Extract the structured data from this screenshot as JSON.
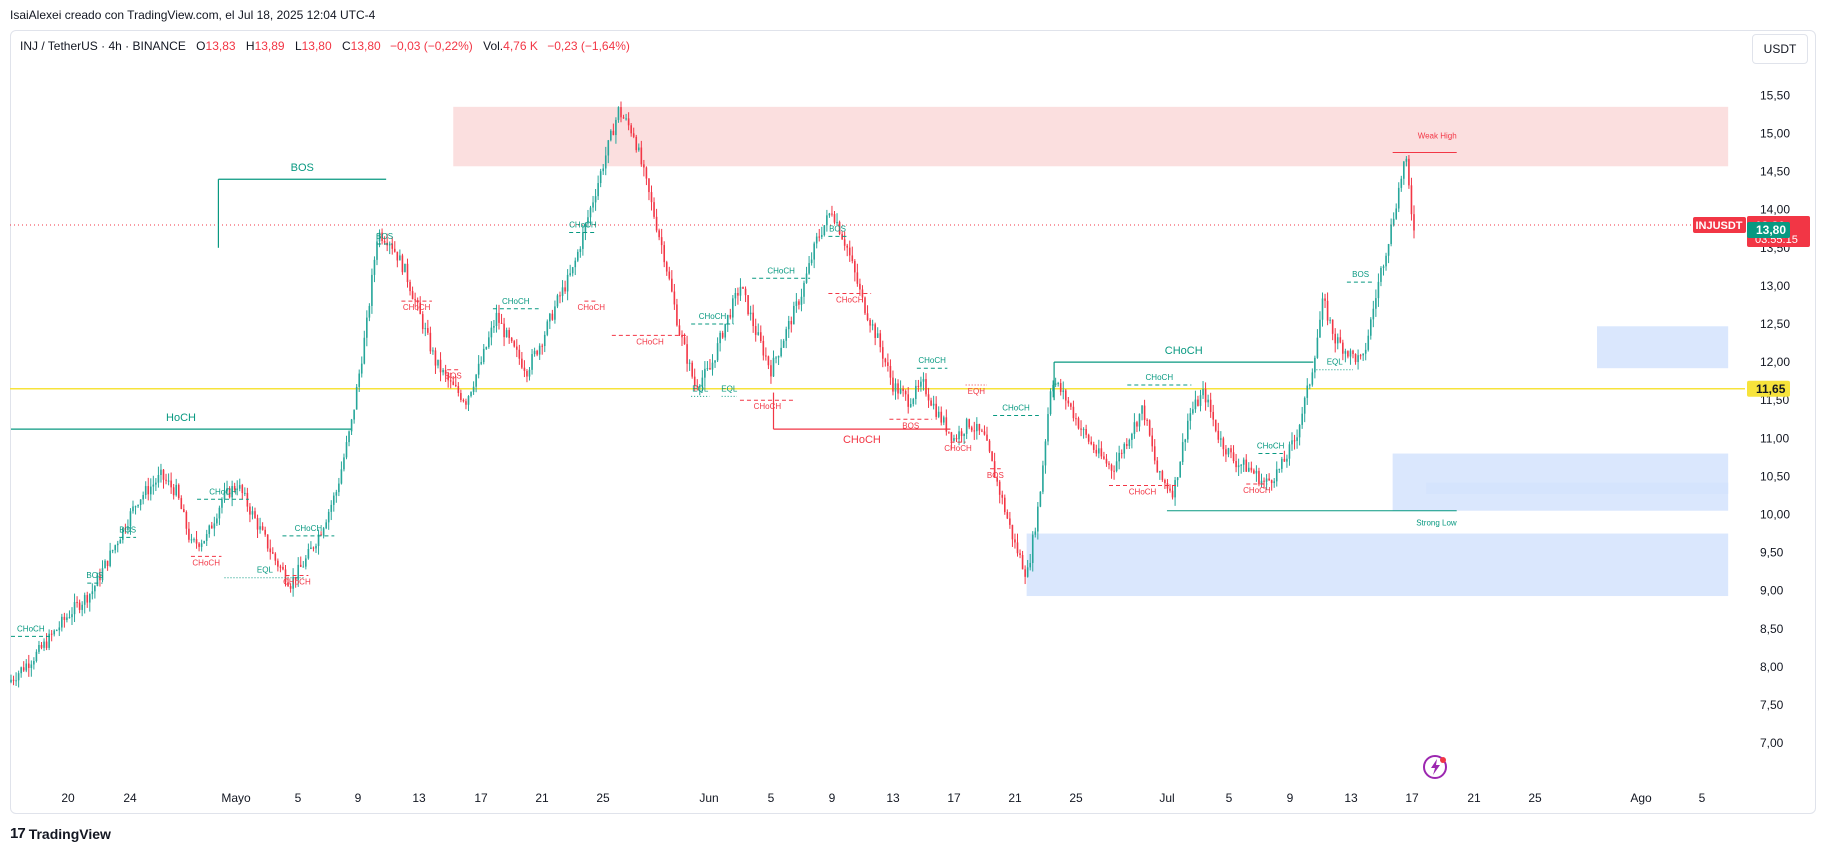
{
  "header": {
    "credit": "IsaiAlexei creado con TradingView.com, el Jul 18, 2025 12:04 UTC-4"
  },
  "legend": {
    "symbol": "INJ / TetherUS · 4h · BINANCE",
    "o_label": "O",
    "o": "13,83",
    "h_label": "H",
    "h": "13,89",
    "l_label": "L",
    "l": "13,80",
    "c_label": "C",
    "c": "13,80",
    "change": "−0,03 (−0,22%)",
    "vol_label": "Vol.",
    "vol": "4,76 K",
    "vol_change": "−0,23 (−1,64%)"
  },
  "currency_button": "USDT",
  "footer": {
    "brand": "TradingView",
    "mark": "17"
  },
  "colors": {
    "up": "#26a69a",
    "down": "#f23645",
    "supply_zone": "#fbdcdc",
    "demand_zone": "#d3e3fd",
    "level_line": "#f7e33b",
    "structure_up": "#089981",
    "structure_down": "#f23645"
  },
  "icons": {
    "footer": "tradingview-logo-icon",
    "flash": "flash-icon"
  },
  "chart_data": {
    "type": "candlestick",
    "interval": "4h",
    "price_axis": {
      "ticks": [
        "15,50",
        "15,00",
        "14,50",
        "14,00",
        "13,50",
        "13,00",
        "12,50",
        "12,00",
        "11,50",
        "11,00",
        "10,50",
        "10,00",
        "9,50",
        "9,00",
        "8,50",
        "8,00",
        "7,50",
        "7,00"
      ],
      "range": [
        6.8,
        15.8
      ]
    },
    "time_axis": {
      "labels": [
        "20",
        "24",
        "Mayo",
        "5",
        "9",
        "13",
        "17",
        "21",
        "25",
        "Jun",
        "5",
        "9",
        "13",
        "17",
        "21",
        "25",
        "Jul",
        "5",
        "9",
        "13",
        "17",
        "21",
        "25",
        "Ago",
        "5"
      ]
    },
    "price_marks": [
      {
        "label": "INJUSDT",
        "price": "13,80",
        "countdown": "03:55:15",
        "value": 13.8,
        "color": "#f23645"
      },
      {
        "price": "13,80",
        "value": 13.75,
        "color": "#089981"
      },
      {
        "price": "11,65",
        "value": 11.65,
        "color": "#f7e33b"
      }
    ],
    "horizontal_level": 11.65,
    "current_price": 13.8,
    "zones": [
      {
        "kind": "supply",
        "from_day": 29.0,
        "to_day": 112.6,
        "top": 15.35,
        "bottom": 14.57
      },
      {
        "kind": "demand",
        "from_day": 104.0,
        "to_day": 112.6,
        "top": 12.47,
        "bottom": 11.92
      },
      {
        "kind": "demand",
        "from_day": 90.6,
        "to_day": 112.6,
        "top": 10.8,
        "bottom": 10.05
      },
      {
        "kind": "demand",
        "from_day": 92.8,
        "to_day": 112.6,
        "top": 10.42,
        "bottom": 10.27
      },
      {
        "kind": "demand",
        "from_day": 66.6,
        "to_day": 112.6,
        "top": 9.75,
        "bottom": 8.93
      }
    ],
    "structure_lines": [
      {
        "text": "HoCH",
        "from_day": 0.0,
        "to_day": 22.3,
        "price": 11.12,
        "color": "#089981",
        "style": "solid",
        "big": true
      },
      {
        "text": "BOS",
        "from_day": 13.6,
        "to_day": 24.6,
        "price": 14.4,
        "color": "#089981",
        "style": "solid",
        "big": true
      },
      {
        "text": "CHoCH",
        "from_day": 68.4,
        "to_day": 85.4,
        "price": 12.0,
        "color": "#089981",
        "style": "solid",
        "big": true
      },
      {
        "text": "CHoCH",
        "from_day": 50.0,
        "to_day": 61.6,
        "price": 11.12,
        "color": "#f23645",
        "style": "solid",
        "big": true
      },
      {
        "text": "CHoCH",
        "from_day": 0.0,
        "to_day": 2.6,
        "price": 8.4,
        "color": "#089981",
        "style": "dashed"
      },
      {
        "text": "BOS",
        "from_day": 5.0,
        "to_day": 6.0,
        "price": 9.1,
        "color": "#089981",
        "style": "dashed"
      },
      {
        "text": "BOS",
        "from_day": 7.1,
        "to_day": 8.2,
        "price": 9.7,
        "color": "#089981",
        "style": "dashed"
      },
      {
        "text": "CHoCH",
        "from_day": 12.2,
        "to_day": 15.6,
        "price": 10.2,
        "color": "#089981",
        "style": "dashed"
      },
      {
        "text": "CHoCH",
        "from_day": 11.8,
        "to_day": 13.8,
        "price": 9.45,
        "color": "#f23645",
        "style": "dashed"
      },
      {
        "text": "EQL",
        "from_day": 14.0,
        "to_day": 19.3,
        "price": 9.17,
        "color": "#089981",
        "style": "dotted"
      },
      {
        "text": "CHoCH",
        "from_day": 17.8,
        "to_day": 21.2,
        "price": 9.72,
        "color": "#089981",
        "style": "dashed"
      },
      {
        "text": "CHoCH",
        "from_day": 18.0,
        "to_day": 19.5,
        "price": 9.2,
        "color": "#f23645",
        "style": "dashed"
      },
      {
        "text": "BOS",
        "from_day": 24.0,
        "to_day": 25.0,
        "price": 13.55,
        "color": "#089981",
        "style": "dashed"
      },
      {
        "text": "CHoCH",
        "from_day": 25.6,
        "to_day": 27.6,
        "price": 12.8,
        "color": "#f23645",
        "style": "dashed"
      },
      {
        "text": "BOS",
        "from_day": 28.6,
        "to_day": 29.4,
        "price": 11.9,
        "color": "#f23645",
        "style": "dashed"
      },
      {
        "text": "CHoCH",
        "from_day": 31.6,
        "to_day": 34.6,
        "price": 12.7,
        "color": "#089981",
        "style": "dashed"
      },
      {
        "text": "CHoCH",
        "from_day": 36.6,
        "to_day": 38.4,
        "price": 13.7,
        "color": "#089981",
        "style": "dashed"
      },
      {
        "text": "CHoCH",
        "from_day": 37.6,
        "to_day": 38.5,
        "price": 12.8,
        "color": "#f23645",
        "style": "dashed"
      },
      {
        "text": "CHoCH",
        "from_day": 39.4,
        "to_day": 44.4,
        "price": 12.35,
        "color": "#f23645",
        "style": "dashed"
      },
      {
        "text": "CHoCH",
        "from_day": 44.6,
        "to_day": 47.4,
        "price": 12.5,
        "color": "#089981",
        "style": "dashed"
      },
      {
        "text": "EQL",
        "from_day": 44.6,
        "to_day": 45.8,
        "price": 11.55,
        "color": "#089981",
        "style": "dotted"
      },
      {
        "text": "EQL",
        "from_day": 46.6,
        "to_day": 47.6,
        "price": 11.55,
        "color": "#089981",
        "style": "dotted"
      },
      {
        "text": "CHoCH",
        "from_day": 47.8,
        "to_day": 51.4,
        "price": 11.5,
        "color": "#f23645",
        "style": "dashed"
      },
      {
        "text": "CHoCH",
        "from_day": 48.6,
        "to_day": 52.4,
        "price": 13.1,
        "color": "#089981",
        "style": "dashed"
      },
      {
        "text": "BOS",
        "from_day": 53.6,
        "to_day": 54.8,
        "price": 13.65,
        "color": "#089981",
        "style": "dashed"
      },
      {
        "text": "CHoCH",
        "from_day": 53.6,
        "to_day": 56.4,
        "price": 12.9,
        "color": "#f23645",
        "style": "dashed"
      },
      {
        "text": "CHoCH",
        "from_day": 59.4,
        "to_day": 61.4,
        "price": 11.92,
        "color": "#089981",
        "style": "dashed"
      },
      {
        "text": "BOS",
        "from_day": 57.6,
        "to_day": 60.4,
        "price": 11.25,
        "color": "#f23645",
        "style": "dashed"
      },
      {
        "text": "CHoCH",
        "from_day": 61.6,
        "to_day": 62.6,
        "price": 10.95,
        "color": "#f23645",
        "style": "dashed"
      },
      {
        "text": "EQH",
        "from_day": 62.6,
        "to_day": 64.0,
        "price": 11.7,
        "color": "#f23645",
        "style": "dotted"
      },
      {
        "text": "CHoCH",
        "from_day": 64.4,
        "to_day": 67.4,
        "price": 11.3,
        "color": "#089981",
        "style": "dashed"
      },
      {
        "text": "BOS",
        "from_day": 64.2,
        "to_day": 64.9,
        "price": 10.6,
        "color": "#f23645",
        "style": "dashed"
      },
      {
        "text": "CHoCH",
        "from_day": 72.0,
        "to_day": 76.4,
        "price": 10.38,
        "color": "#f23645",
        "style": "dashed"
      },
      {
        "text": "CHoCH",
        "from_day": 73.2,
        "to_day": 77.4,
        "price": 11.7,
        "color": "#089981",
        "style": "dashed"
      },
      {
        "text": "CHoCH",
        "from_day": 81.0,
        "to_day": 82.4,
        "price": 10.4,
        "color": "#f23645",
        "style": "dashed"
      },
      {
        "text": "CHoCH",
        "from_day": 81.8,
        "to_day": 83.4,
        "price": 10.8,
        "color": "#089981",
        "style": "dashed"
      },
      {
        "text": "BOS",
        "from_day": 87.6,
        "to_day": 89.4,
        "price": 13.05,
        "color": "#089981",
        "style": "dashed"
      },
      {
        "text": "EQL",
        "from_day": 85.6,
        "to_day": 88.0,
        "price": 11.9,
        "color": "#089981",
        "style": "dotted"
      }
    ],
    "swing_labels": [
      {
        "text": "Weak High",
        "from_day": 90.6,
        "to_day": 94.8,
        "price": 14.75,
        "color": "#f23645"
      },
      {
        "text": "Strong Low",
        "from_day": 75.8,
        "to_day": 94.8,
        "price": 10.05,
        "color": "#089981"
      }
    ],
    "candles_generated": "OHLC path estimated from price curve"
  }
}
